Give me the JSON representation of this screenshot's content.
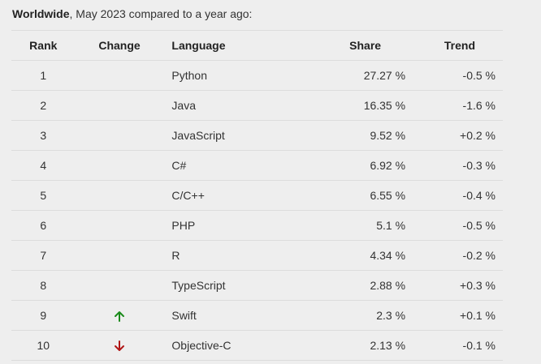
{
  "caption": {
    "bold": "Worldwide",
    "rest": ", May 2023 compared to a year ago:"
  },
  "headers": {
    "rank": "Rank",
    "change": "Change",
    "language": "Language",
    "share": "Share",
    "trend": "Trend"
  },
  "colors": {
    "up_arrow": "#1a8a1a",
    "down_arrow": "#b01515"
  },
  "rows": [
    {
      "rank": "1",
      "change": "",
      "language": "Python",
      "share": "27.27 %",
      "trend": "-0.5 %"
    },
    {
      "rank": "2",
      "change": "",
      "language": "Java",
      "share": "16.35 %",
      "trend": "-1.6 %"
    },
    {
      "rank": "3",
      "change": "",
      "language": "JavaScript",
      "share": "9.52 %",
      "trend": "+0.2 %"
    },
    {
      "rank": "4",
      "change": "",
      "language": "C#",
      "share": "6.92 %",
      "trend": "-0.3 %"
    },
    {
      "rank": "5",
      "change": "",
      "language": "C/C++",
      "share": "6.55 %",
      "trend": "-0.4 %"
    },
    {
      "rank": "6",
      "change": "",
      "language": "PHP",
      "share": "5.1 %",
      "trend": "-0.5 %"
    },
    {
      "rank": "7",
      "change": "",
      "language": "R",
      "share": "4.34 %",
      "trend": "-0.2 %"
    },
    {
      "rank": "8",
      "change": "",
      "language": "TypeScript",
      "share": "2.88 %",
      "trend": "+0.3 %"
    },
    {
      "rank": "9",
      "change": "up",
      "language": "Swift",
      "share": "2.3 %",
      "trend": "+0.1 %"
    },
    {
      "rank": "10",
      "change": "down",
      "language": "Objective-C",
      "share": "2.13 %",
      "trend": "-0.1 %"
    }
  ]
}
